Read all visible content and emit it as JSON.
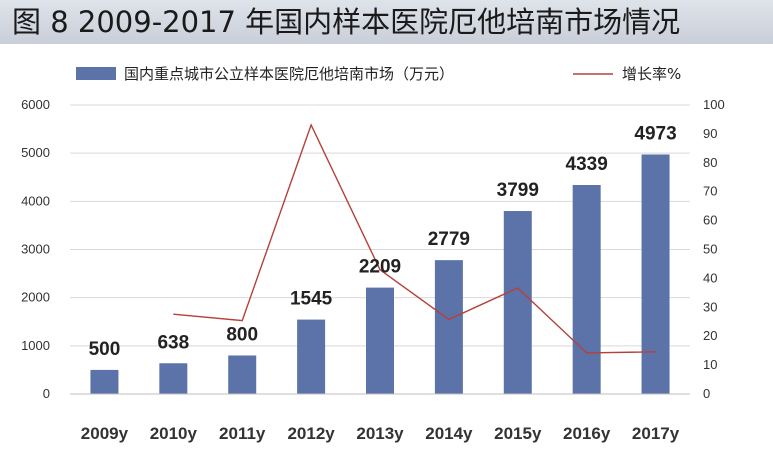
{
  "header": {
    "title": "图 8 2009-2017 年国内样本医院厄他培南市场情况"
  },
  "chart_data": {
    "type": "bar",
    "categories": [
      "2009y",
      "2010y",
      "2011y",
      "2012y",
      "2013y",
      "2014y",
      "2015y",
      "2016y",
      "2017y"
    ],
    "series": [
      {
        "name": "国内重点城市公立样本医院厄他培南市场（万元）",
        "type": "bar",
        "axis": "left",
        "values": [
          500,
          638,
          800,
          1545,
          2209,
          2779,
          3799,
          4339,
          4973
        ],
        "labels": [
          "500",
          "638",
          "800",
          "1545",
          "2209",
          "2779",
          "3799",
          "4339",
          "4973"
        ]
      },
      {
        "name": "增长率%",
        "type": "line",
        "axis": "right",
        "values": [
          null,
          27.6,
          25.4,
          93.1,
          43.0,
          25.8,
          36.7,
          14.2,
          14.6
        ]
      }
    ],
    "y_left": {
      "min": 0,
      "max": 6000,
      "ticks": [
        "0",
        "1000",
        "2000",
        "3000",
        "4000",
        "5000",
        "6000"
      ]
    },
    "y_right": {
      "min": 0,
      "max": 100,
      "ticks": [
        "0",
        "10",
        "20",
        "30",
        "40",
        "50",
        "60",
        "70",
        "80",
        "90",
        "100"
      ]
    },
    "grid": true,
    "legend_position": "top",
    "colors": {
      "bar": "#5b73a8",
      "line": "#b5413a",
      "grid": "#d9d9d9"
    }
  }
}
